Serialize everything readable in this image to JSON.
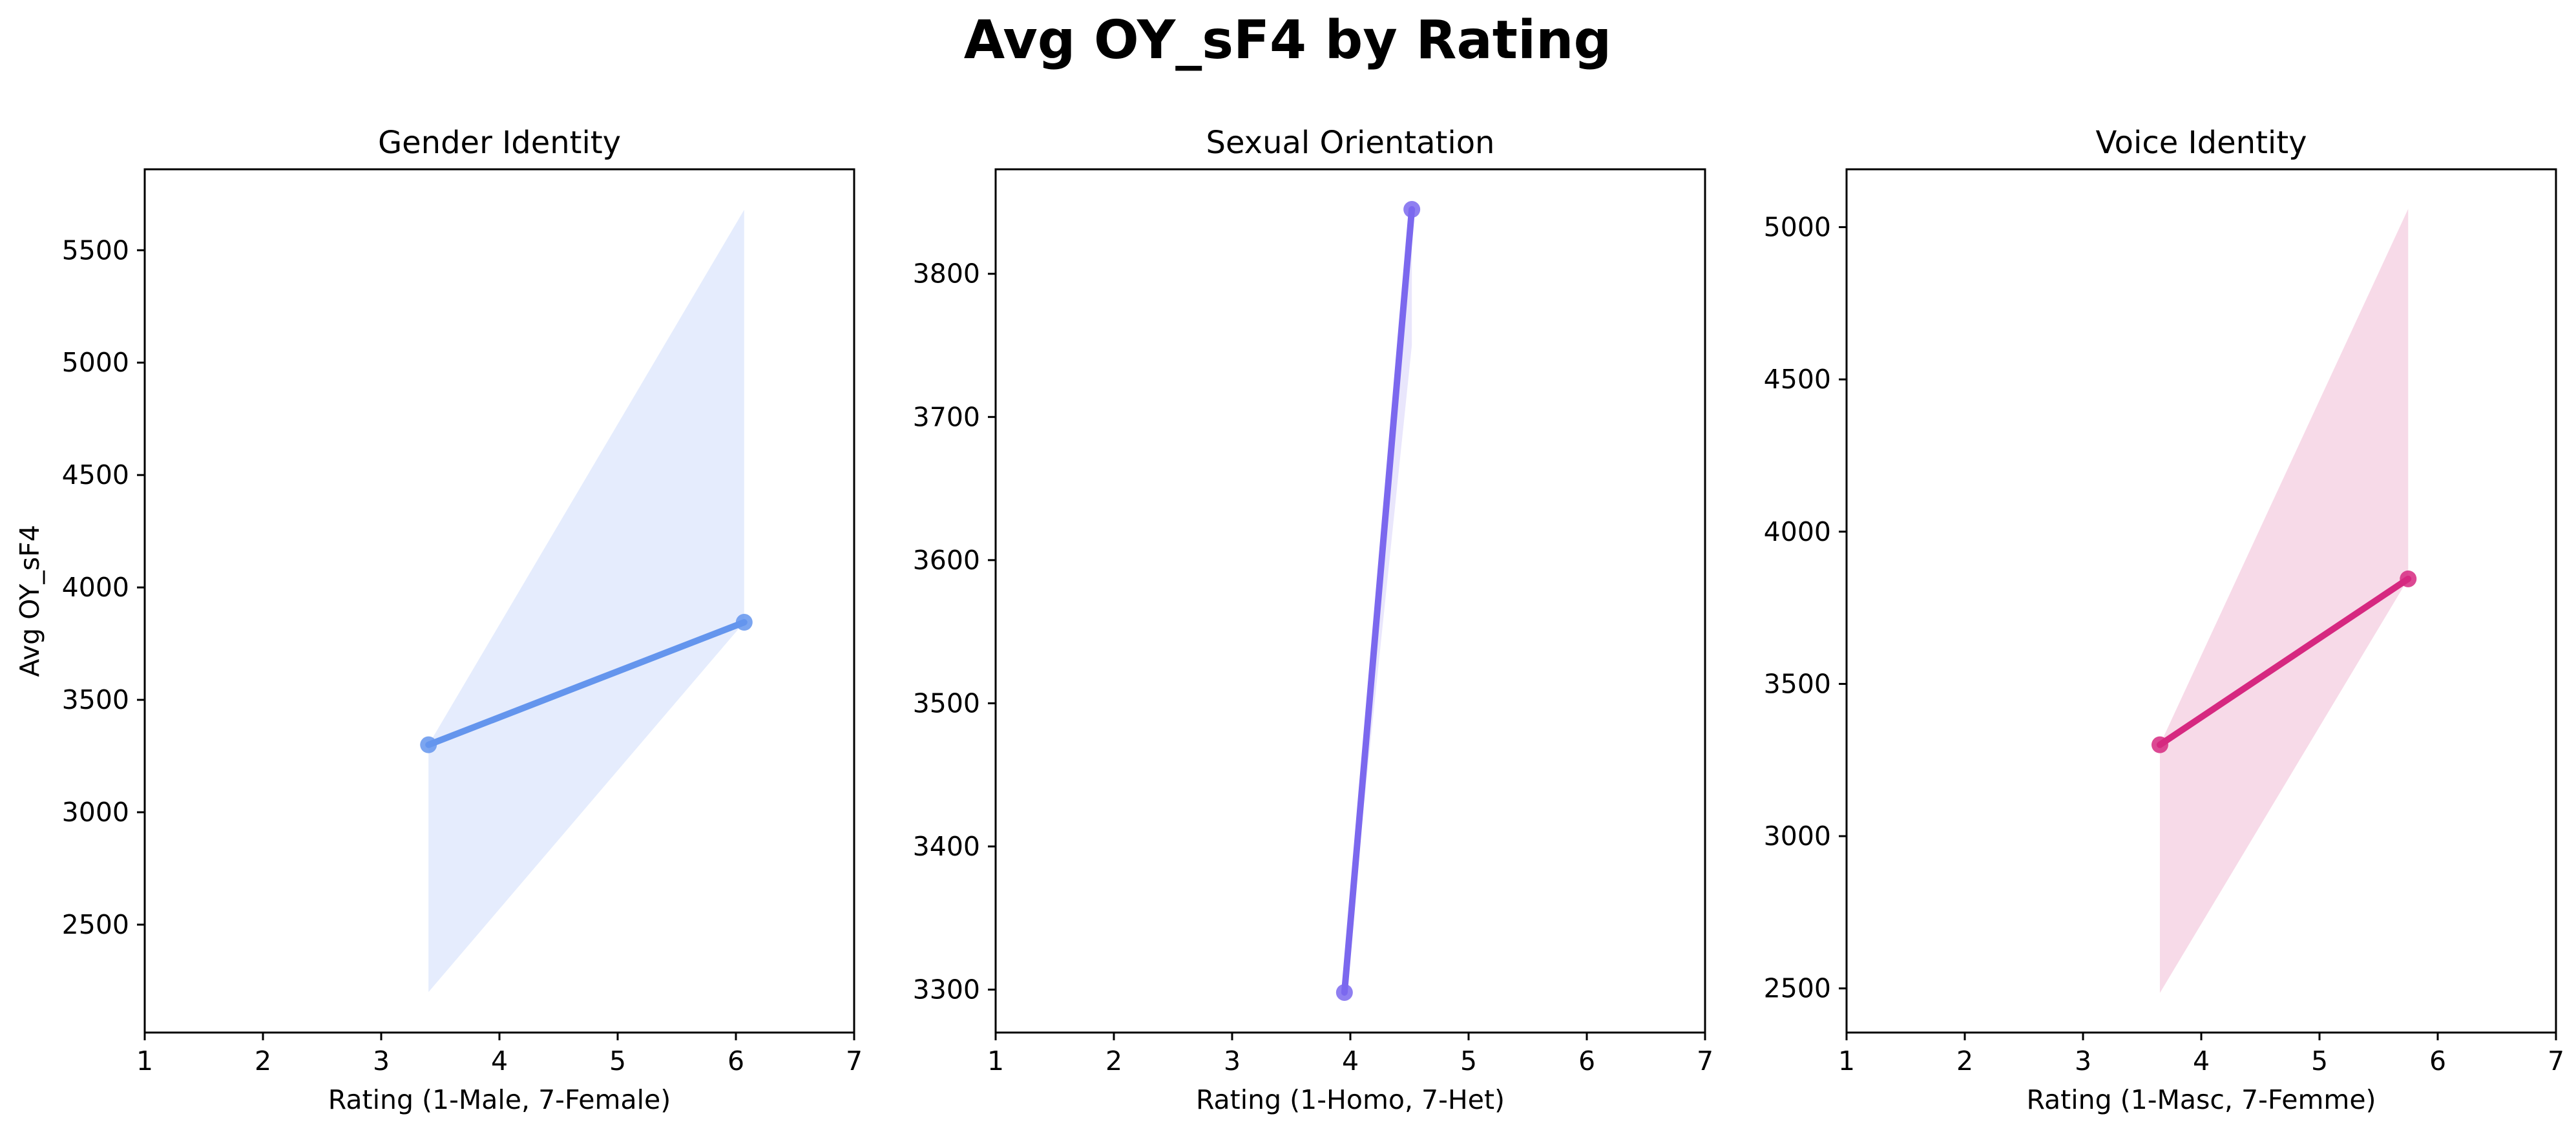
{
  "figure": {
    "suptitle": "Avg OY_sF4 by Rating"
  },
  "chart_data": [
    {
      "type": "line",
      "title": "Gender Identity",
      "xlabel": "Rating (1-Male, 7-Female)",
      "ylabel": "Avg OY_sF4",
      "xlim": [
        1,
        7
      ],
      "ylim": [
        2020,
        5860
      ],
      "xticks": [
        1,
        2,
        3,
        4,
        5,
        6,
        7
      ],
      "yticks": [
        2500,
        3000,
        3500,
        4000,
        4500,
        5000,
        5500
      ],
      "color": "#6495ED",
      "band_color": "#E5ECFD",
      "grid": false,
      "series": [
        {
          "x": [
            3.4,
            6.07
          ],
          "y": [
            3300,
            3845
          ],
          "band_lower": [
            2200,
            3845
          ],
          "band_upper": [
            3300,
            5680
          ]
        }
      ]
    },
    {
      "type": "line",
      "title": "Sexual Orientation",
      "xlabel": "Rating (1-Homo, 7-Het)",
      "ylabel": "",
      "xlim": [
        1,
        7
      ],
      "ylim": [
        3270,
        3873
      ],
      "xticks": [
        1,
        2,
        3,
        4,
        5,
        6,
        7
      ],
      "yticks": [
        3300,
        3400,
        3500,
        3600,
        3700,
        3800
      ],
      "color": "#7B68EE",
      "band_color": "#E9E6FC",
      "grid": false,
      "series": [
        {
          "x": [
            3.95,
            4.52
          ],
          "y": [
            3298,
            3845
          ],
          "band_lower": [
            3298,
            3750
          ],
          "band_upper": [
            3298,
            3845
          ]
        }
      ]
    },
    {
      "type": "line",
      "title": "Voice Identity",
      "xlabel": "Rating (1-Masc, 7-Femme)",
      "ylabel": "",
      "xlim": [
        1,
        7
      ],
      "ylim": [
        2355,
        5190
      ],
      "xticks": [
        1,
        2,
        3,
        4,
        5,
        6,
        7
      ],
      "yticks": [
        2500,
        3000,
        3500,
        4000,
        4500,
        5000
      ],
      "color": "#D62880",
      "band_color": "#F7DAE8",
      "grid": false,
      "series": [
        {
          "x": [
            3.65,
            5.75
          ],
          "y": [
            3300,
            3845
          ],
          "band_lower": [
            2485,
            3845
          ],
          "band_upper": [
            3300,
            5060
          ]
        }
      ]
    }
  ]
}
